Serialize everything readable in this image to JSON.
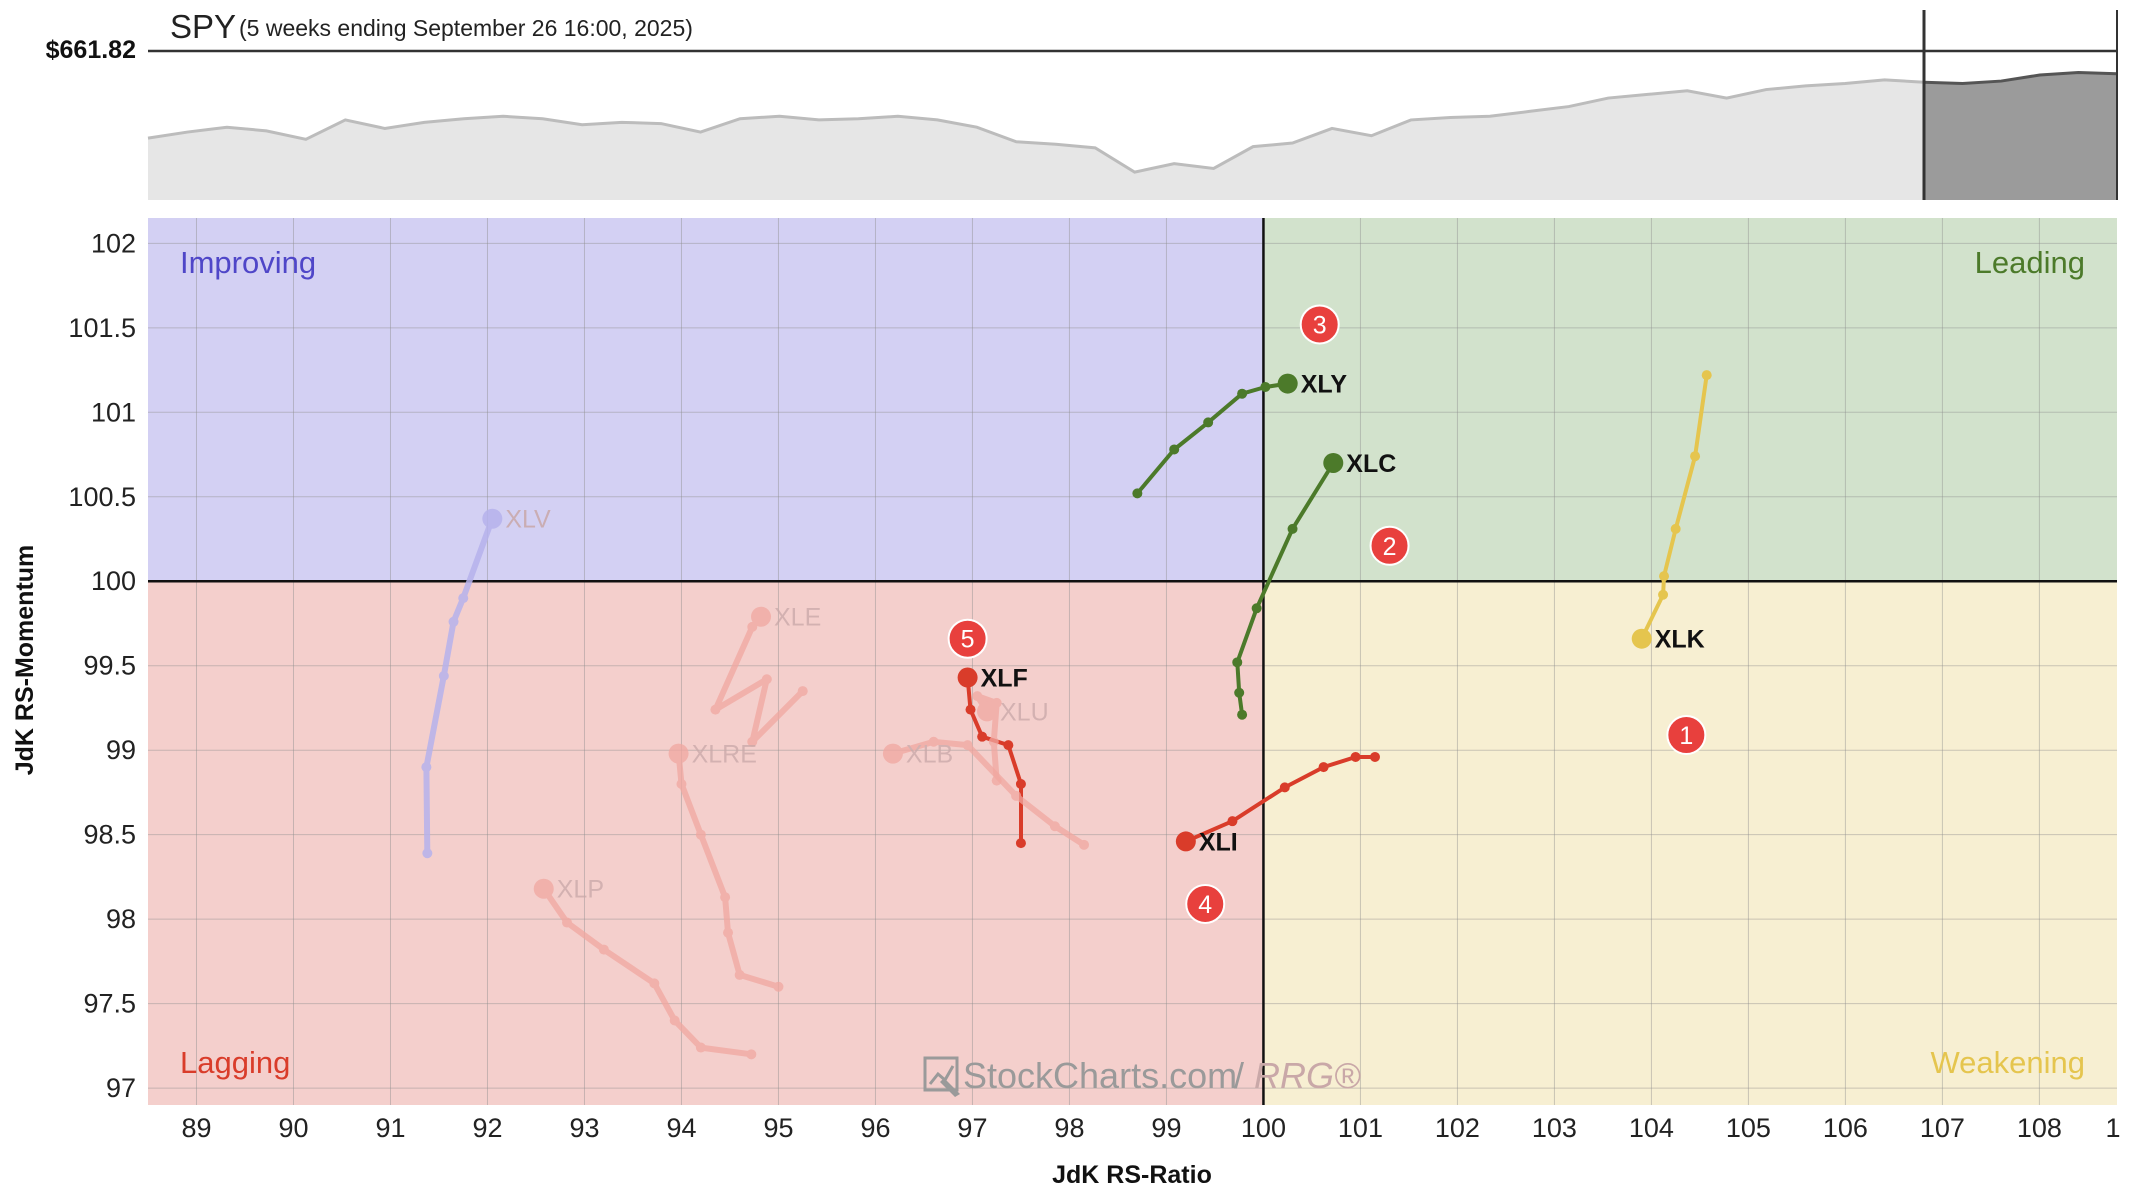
{
  "header": {
    "symbol": "SPY",
    "subtitle": "(5 weeks ending September 26 16:00, 2025)",
    "price_label": "$661.82"
  },
  "watermark": {
    "main": "StockCharts.com",
    "sep": "/",
    "rrg": "RRG®"
  },
  "colors": {
    "improving": "#d3d0f3",
    "leading": "#d2e2cc",
    "weakening": "#f7efd2",
    "lagging": "#f4cfcc",
    "xlk": "#e5c54e",
    "green": "#4c7a2a",
    "red": "#d93c2a",
    "badge": "#e8403d",
    "faded_red": "#f1a7a0",
    "faded_blue": "#b6b2ec"
  },
  "chart_data": {
    "type": "scatter",
    "title": "",
    "xlabel": "JdK RS-Ratio",
    "ylabel": "JdK RS-Momentum",
    "xlim": [
      88.5,
      108.8
    ],
    "ylim": [
      96.9,
      102.15
    ],
    "center": [
      100,
      100
    ],
    "x_ticks": [
      89,
      90,
      91,
      92,
      93,
      94,
      95,
      96,
      97,
      98,
      99,
      100,
      101,
      102,
      103,
      104,
      105,
      106,
      107,
      108
    ],
    "x_tick_partial": "1",
    "y_ticks": [
      97,
      97.5,
      98,
      98.5,
      99,
      99.5,
      100,
      100.5,
      101,
      101.5,
      102
    ],
    "quadrants": {
      "improving": "Improving",
      "leading": "Leading",
      "weakening": "Weakening",
      "lagging": "Lagging"
    },
    "series": [
      {
        "name": "XLK",
        "color": "#e5c54e",
        "faded": false,
        "points": [
          [
            104.57,
            101.22
          ],
          [
            104.45,
            100.74
          ],
          [
            104.25,
            100.31
          ],
          [
            104.13,
            100.03
          ],
          [
            104.12,
            99.92
          ],
          [
            103.9,
            99.66
          ]
        ]
      },
      {
        "name": "XLC",
        "color": "#4c7a2a",
        "faded": false,
        "points": [
          [
            99.78,
            99.21
          ],
          [
            99.75,
            99.34
          ],
          [
            99.73,
            99.52
          ],
          [
            99.93,
            99.84
          ],
          [
            100.3,
            100.31
          ],
          [
            100.72,
            100.7
          ]
        ]
      },
      {
        "name": "XLY",
        "color": "#4c7a2a",
        "faded": false,
        "points": [
          [
            98.7,
            100.52
          ],
          [
            99.08,
            100.78
          ],
          [
            99.43,
            100.94
          ],
          [
            99.78,
            101.11
          ],
          [
            100.02,
            101.15
          ],
          [
            100.25,
            101.17
          ]
        ]
      },
      {
        "name": "XLI",
        "color": "#d93c2a",
        "faded": false,
        "points": [
          [
            101.15,
            98.96
          ],
          [
            100.95,
            98.96
          ],
          [
            100.62,
            98.9
          ],
          [
            100.22,
            98.78
          ],
          [
            99.68,
            98.58
          ],
          [
            99.2,
            98.46
          ]
        ]
      },
      {
        "name": "XLF",
        "color": "#d93c2a",
        "faded": false,
        "points": [
          [
            97.5,
            98.45
          ],
          [
            97.5,
            98.8
          ],
          [
            97.37,
            99.03
          ],
          [
            97.1,
            99.08
          ],
          [
            96.98,
            99.24
          ],
          [
            96.95,
            99.43
          ]
        ]
      },
      {
        "name": "XLV",
        "color": "#b6b2ec",
        "faded": true,
        "points": [
          [
            91.38,
            98.39
          ],
          [
            91.37,
            98.9
          ],
          [
            91.55,
            99.44
          ],
          [
            91.65,
            99.76
          ],
          [
            91.75,
            99.9
          ],
          [
            92.05,
            100.37
          ]
        ]
      },
      {
        "name": "XLE",
        "color": "#f1a7a0",
        "faded": true,
        "points": [
          [
            95.25,
            99.35
          ],
          [
            94.73,
            99.05
          ],
          [
            94.88,
            99.42
          ],
          [
            94.35,
            99.24
          ],
          [
            94.73,
            99.73
          ],
          [
            94.82,
            99.79
          ]
        ]
      },
      {
        "name": "XLU",
        "color": "#f1a7a0",
        "faded": true,
        "points": [
          [
            97.25,
            98.82
          ],
          [
            97.22,
            99.05
          ],
          [
            97.25,
            99.28
          ],
          [
            97.05,
            99.32
          ],
          [
            97.15,
            99.23
          ]
        ]
      },
      {
        "name": "XLB",
        "color": "#f1a7a0",
        "faded": true,
        "points": [
          [
            98.15,
            98.44
          ],
          [
            97.85,
            98.55
          ],
          [
            97.45,
            98.73
          ],
          [
            96.95,
            99.03
          ],
          [
            96.6,
            99.05
          ],
          [
            96.18,
            98.98
          ]
        ]
      },
      {
        "name": "XLRE",
        "color": "#f1a7a0",
        "faded": true,
        "points": [
          [
            95.0,
            97.6
          ],
          [
            94.6,
            97.67
          ],
          [
            94.48,
            97.92
          ],
          [
            94.45,
            98.13
          ],
          [
            94.2,
            98.5
          ],
          [
            94.0,
            98.8
          ],
          [
            93.97,
            98.98
          ]
        ]
      },
      {
        "name": "XLP",
        "color": "#f1a7a0",
        "faded": true,
        "points": [
          [
            94.72,
            97.2
          ],
          [
            94.2,
            97.24
          ],
          [
            93.93,
            97.4
          ],
          [
            93.72,
            97.62
          ],
          [
            93.2,
            97.82
          ],
          [
            92.82,
            97.98
          ],
          [
            92.58,
            98.18
          ]
        ]
      }
    ],
    "annotations": [
      {
        "label": "1",
        "x": 104.36,
        "y": 99.09
      },
      {
        "label": "2",
        "x": 101.3,
        "y": 100.21
      },
      {
        "label": "3",
        "x": 100.58,
        "y": 101.52
      },
      {
        "label": "4",
        "x": 99.4,
        "y": 98.09
      },
      {
        "label": "5",
        "x": 96.95,
        "y": 99.66
      }
    ],
    "price_strip": {
      "values": [
        0.46,
        0.51,
        0.55,
        0.52,
        0.45,
        0.61,
        0.54,
        0.59,
        0.62,
        0.64,
        0.62,
        0.57,
        0.59,
        0.58,
        0.51,
        0.62,
        0.64,
        0.61,
        0.62,
        0.64,
        0.61,
        0.55,
        0.43,
        0.41,
        0.38,
        0.18,
        0.25,
        0.21,
        0.39,
        0.42,
        0.54,
        0.48,
        0.61,
        0.63,
        0.64,
        0.68,
        0.72,
        0.79,
        0.82,
        0.85,
        0.79,
        0.86,
        0.89,
        0.91,
        0.94,
        0.92
      ],
      "shaded_values": [
        0.92,
        0.91,
        0.93,
        0.98,
        1.0,
        0.99
      ]
    }
  }
}
